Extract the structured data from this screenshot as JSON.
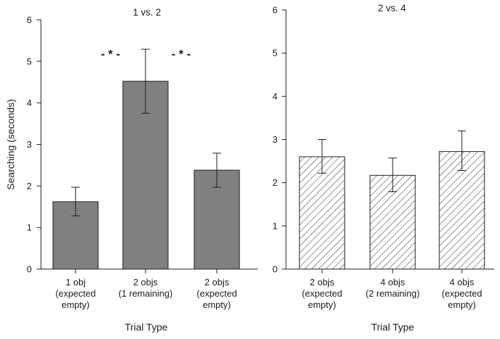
{
  "chart_data": [
    {
      "type": "bar",
      "title": "1 vs. 2",
      "ylabel": "Searching (seconds)",
      "xlabel": "Trial Type",
      "ylim": [
        0,
        6
      ],
      "yticks": [
        0,
        1,
        2,
        3,
        4,
        5,
        6
      ],
      "bar_style": "solid",
      "bar_color": "#808080",
      "categories": [
        [
          "1 obj",
          "(expected",
          "empty)"
        ],
        [
          "2 objs",
          "(1 remaining)"
        ],
        [
          "2 objs",
          "(expected",
          "empty)"
        ]
      ],
      "values": [
        1.62,
        4.52,
        2.38
      ],
      "error_low": [
        1.28,
        3.75,
        1.97
      ],
      "error_high": [
        1.97,
        5.29,
        2.79
      ],
      "annotations": [
        {
          "text": "- * -",
          "between": [
            0,
            1
          ]
        },
        {
          "text": "- * -",
          "between": [
            1,
            2
          ]
        }
      ]
    },
    {
      "type": "bar",
      "title": "2 vs. 4",
      "ylabel": "",
      "xlabel": "Trial Type",
      "ylim": [
        0,
        6
      ],
      "yticks": [
        0,
        1,
        2,
        3,
        4,
        5,
        6
      ],
      "bar_style": "hatched",
      "bar_color": "#ffffff",
      "categories": [
        [
          "2 objs",
          "(expected",
          "empty)"
        ],
        [
          "4 objs",
          "(2 remaining)"
        ],
        [
          "4 objs",
          "(expected",
          "empty)"
        ]
      ],
      "values": [
        2.6,
        2.17,
        2.72
      ],
      "error_low": [
        2.22,
        1.79,
        2.28
      ],
      "error_high": [
        3.0,
        2.57,
        3.2
      ],
      "annotations": []
    }
  ]
}
